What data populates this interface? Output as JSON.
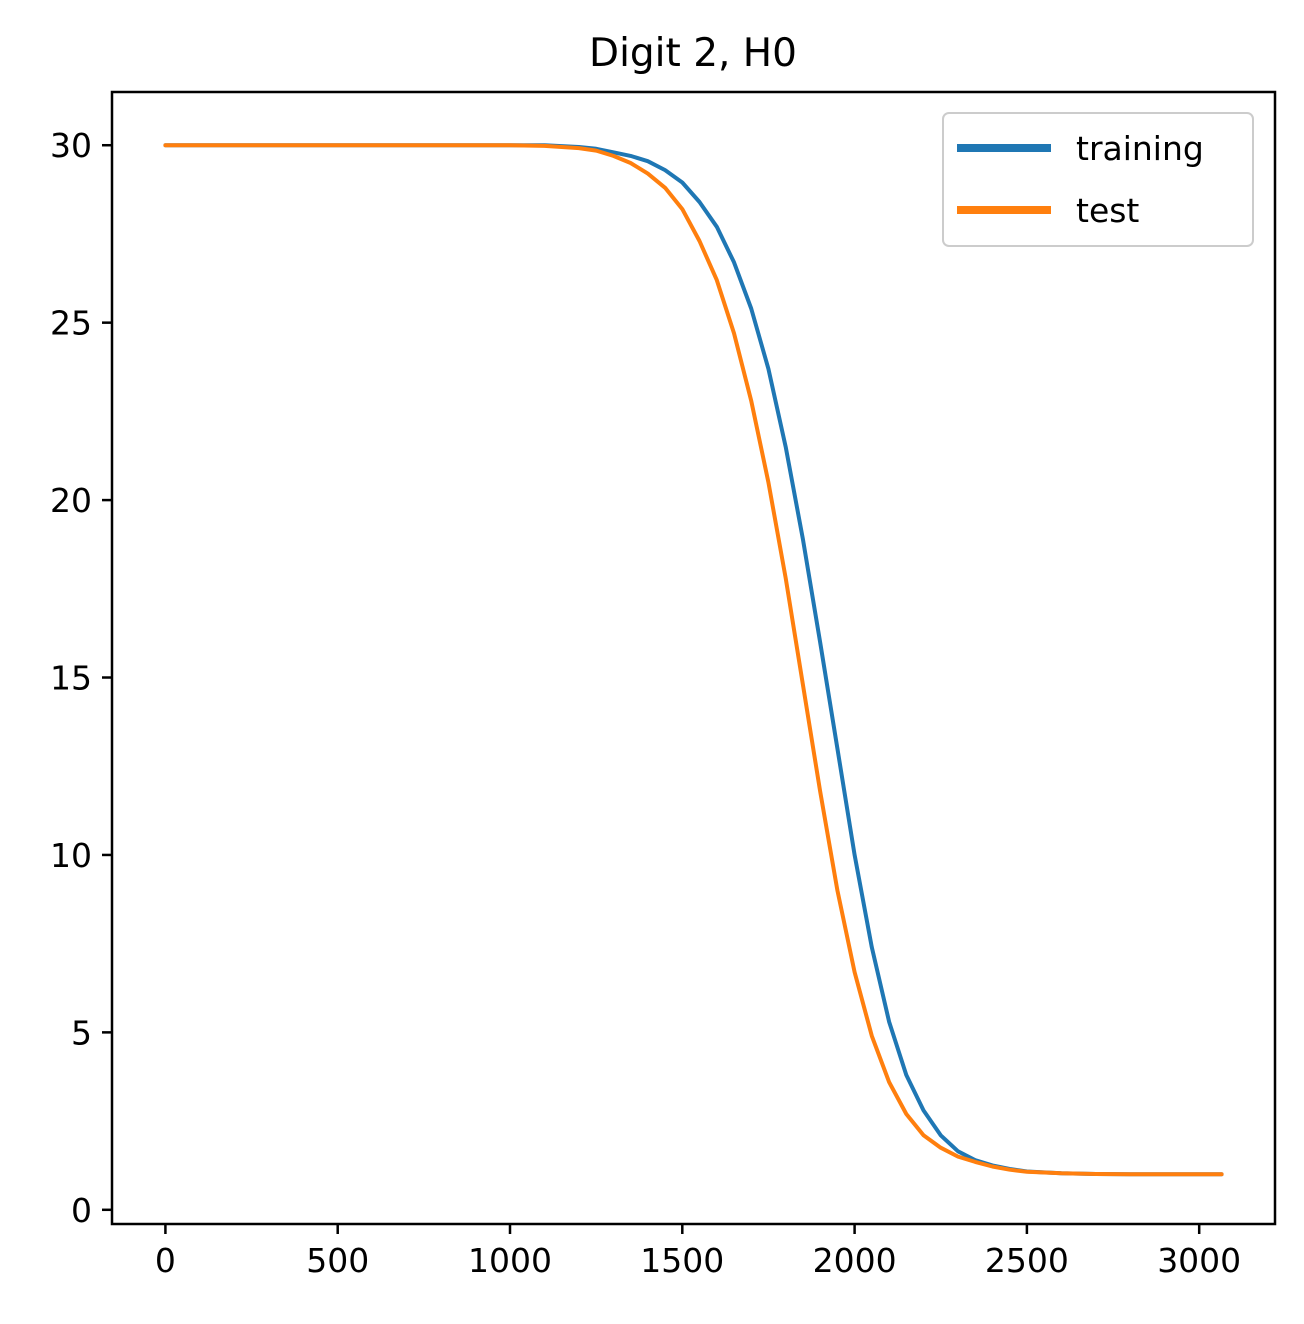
{
  "chart_data": {
    "type": "line",
    "title": "Digit 2, H0",
    "xlabel": "",
    "ylabel": "",
    "xlim": [
      -155,
      3220
    ],
    "ylim": [
      -0.4,
      31.5
    ],
    "xticks": [
      0,
      500,
      1000,
      1500,
      2000,
      2500,
      3000
    ],
    "yticks": [
      0,
      5,
      10,
      15,
      20,
      25,
      30
    ],
    "xtick_labels": [
      "0",
      "500",
      "1000",
      "1500",
      "2000",
      "2500",
      "3000"
    ],
    "ytick_labels": [
      "0",
      "5",
      "10",
      "15",
      "20",
      "25",
      "30"
    ],
    "grid": false,
    "legend": {
      "placement": "top-right"
    },
    "series": [
      {
        "name": "training",
        "color": "#1f77b4",
        "x": [
          0,
          200,
          400,
          600,
          800,
          1000,
          1100,
          1200,
          1250,
          1300,
          1350,
          1400,
          1450,
          1500,
          1550,
          1600,
          1650,
          1700,
          1750,
          1800,
          1850,
          1900,
          1950,
          2000,
          2050,
          2100,
          2150,
          2200,
          2250,
          2300,
          2350,
          2400,
          2450,
          2500,
          2600,
          2700,
          2800,
          2900,
          3000,
          3065
        ],
        "y": [
          30,
          30,
          30,
          30,
          30,
          30,
          30,
          29.95,
          29.9,
          29.8,
          29.7,
          29.55,
          29.3,
          28.95,
          28.4,
          27.7,
          26.7,
          25.4,
          23.7,
          21.5,
          18.9,
          16.0,
          13.0,
          10.0,
          7.4,
          5.3,
          3.8,
          2.8,
          2.1,
          1.65,
          1.4,
          1.25,
          1.15,
          1.08,
          1.03,
          1.01,
          1.0,
          1.0,
          1.0,
          1.0
        ]
      },
      {
        "name": "test",
        "color": "#ff7f0e",
        "x": [
          0,
          200,
          400,
          600,
          800,
          1000,
          1100,
          1200,
          1250,
          1300,
          1350,
          1400,
          1450,
          1500,
          1550,
          1600,
          1650,
          1700,
          1750,
          1800,
          1850,
          1900,
          1950,
          2000,
          2050,
          2100,
          2150,
          2200,
          2250,
          2300,
          2350,
          2400,
          2450,
          2500,
          2600,
          2700,
          2800,
          2900,
          3000,
          3065
        ],
        "y": [
          30,
          30,
          30,
          30,
          30,
          30,
          29.98,
          29.92,
          29.85,
          29.7,
          29.5,
          29.2,
          28.8,
          28.2,
          27.3,
          26.2,
          24.7,
          22.8,
          20.5,
          17.8,
          14.8,
          11.8,
          9.0,
          6.7,
          4.9,
          3.6,
          2.7,
          2.1,
          1.75,
          1.5,
          1.35,
          1.22,
          1.13,
          1.07,
          1.03,
          1.01,
          1.0,
          1.0,
          1.0,
          1.0
        ]
      }
    ]
  }
}
